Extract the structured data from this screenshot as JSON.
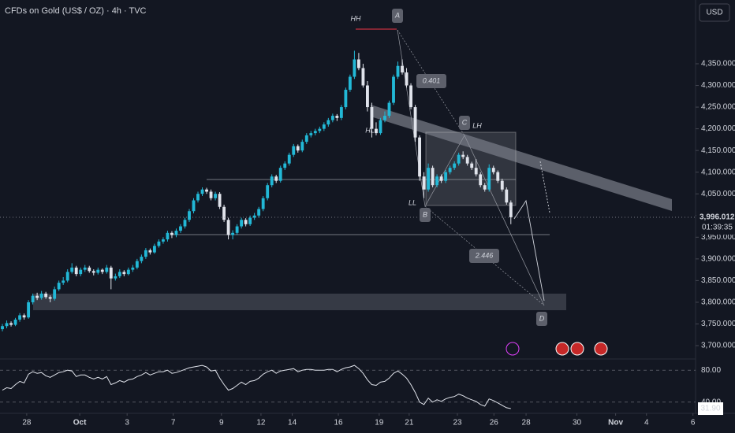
{
  "chart_data": {
    "type": "candlestick",
    "title": "CFDs on Gold (US$ / OZ) · 4h · TVC",
    "currency": "USD",
    "up_color": "#22b8d6",
    "down_color": "#e0e3eb",
    "ylim": [
      3671,
      4497
    ],
    "yticks": [
      {
        "value": 3700,
        "label": "3,700.000"
      },
      {
        "value": 3750,
        "label": "3,750.000"
      },
      {
        "value": 3800,
        "label": "3,800.000"
      },
      {
        "value": 3850,
        "label": "3,850.000"
      },
      {
        "value": 3900,
        "label": "3,900.000"
      },
      {
        "value": 3950,
        "label": "3,950.000"
      },
      {
        "value": 4000,
        "label": "4,000.000"
      },
      {
        "value": 4050,
        "label": "4,050.000"
      },
      {
        "value": 4100,
        "label": "4,100.000"
      },
      {
        "value": 4150,
        "label": "4,150.000"
      },
      {
        "value": 4200,
        "label": "4,200.000"
      },
      {
        "value": 4250,
        "label": "4,250.000"
      },
      {
        "value": 4300,
        "label": "4,300.000"
      },
      {
        "value": 4350,
        "label": "4,350.000"
      }
    ],
    "xlim": [
      -0.55,
      159.5
    ],
    "xticks": [
      {
        "value": 5.6,
        "label": "28"
      },
      {
        "value": 17.8,
        "label": "Oct"
      },
      {
        "value": 28.7,
        "label": "3"
      },
      {
        "value": 39.3,
        "label": "7"
      },
      {
        "value": 50.4,
        "label": "9"
      },
      {
        "value": 59.5,
        "label": "12"
      },
      {
        "value": 66.7,
        "label": "14"
      },
      {
        "value": 77.3,
        "label": "16"
      },
      {
        "value": 86.7,
        "label": "19"
      },
      {
        "value": 93.6,
        "label": "21"
      },
      {
        "value": 104.7,
        "label": "23"
      },
      {
        "value": 113.1,
        "label": "26"
      },
      {
        "value": 120.5,
        "label": "28"
      },
      {
        "value": 132.2,
        "label": "30"
      },
      {
        "value": 141.1,
        "label": "Nov"
      },
      {
        "value": 148.2,
        "label": "4"
      },
      {
        "value": 158.9,
        "label": "6"
      }
    ],
    "last_price": {
      "value": 3996.012,
      "label": "3,996.012"
    },
    "countdown": "01:39:35",
    "candles": [
      [
        3738,
        3750,
        3733,
        3745
      ],
      [
        3745,
        3758,
        3740,
        3752
      ],
      [
        3752,
        3756,
        3744,
        3748
      ],
      [
        3748,
        3764,
        3745,
        3760
      ],
      [
        3760,
        3775,
        3755,
        3770
      ],
      [
        3770,
        3774,
        3760,
        3765
      ],
      [
        3765,
        3805,
        3762,
        3800
      ],
      [
        3800,
        3820,
        3795,
        3815
      ],
      [
        3815,
        3822,
        3805,
        3810
      ],
      [
        3810,
        3826,
        3806,
        3820
      ],
      [
        3820,
        3824,
        3808,
        3812
      ],
      [
        3812,
        3816,
        3800,
        3808
      ],
      [
        3808,
        3836,
        3804,
        3830
      ],
      [
        3830,
        3850,
        3826,
        3845
      ],
      [
        3845,
        3858,
        3840,
        3850
      ],
      [
        3850,
        3876,
        3846,
        3870
      ],
      [
        3870,
        3890,
        3866,
        3880
      ],
      [
        3880,
        3884,
        3860,
        3865
      ],
      [
        3865,
        3880,
        3860,
        3875
      ],
      [
        3875,
        3886,
        3870,
        3880
      ],
      [
        3880,
        3884,
        3868,
        3872
      ],
      [
        3872,
        3876,
        3862,
        3868
      ],
      [
        3868,
        3880,
        3864,
        3875
      ],
      [
        3875,
        3878,
        3865,
        3870
      ],
      [
        3870,
        3886,
        3866,
        3880
      ],
      [
        3880,
        3884,
        3830,
        3855
      ],
      [
        3855,
        3866,
        3850,
        3860
      ],
      [
        3860,
        3876,
        3856,
        3870
      ],
      [
        3870,
        3874,
        3860,
        3865
      ],
      [
        3865,
        3880,
        3862,
        3875
      ],
      [
        3875,
        3886,
        3870,
        3880
      ],
      [
        3880,
        3900,
        3876,
        3895
      ],
      [
        3895,
        3910,
        3890,
        3905
      ],
      [
        3905,
        3925,
        3900,
        3920
      ],
      [
        3920,
        3924,
        3910,
        3915
      ],
      [
        3915,
        3935,
        3912,
        3930
      ],
      [
        3930,
        3945,
        3926,
        3940
      ],
      [
        3940,
        3950,
        3935,
        3945
      ],
      [
        3945,
        3965,
        3940,
        3960
      ],
      [
        3960,
        3964,
        3948,
        3955
      ],
      [
        3955,
        3970,
        3950,
        3965
      ],
      [
        3965,
        3980,
        3960,
        3975
      ],
      [
        3975,
        3995,
        3970,
        3990
      ],
      [
        3990,
        4015,
        3985,
        4010
      ],
      [
        4010,
        4040,
        4005,
        4035
      ],
      [
        4035,
        4055,
        4030,
        4050
      ],
      [
        4050,
        4065,
        4045,
        4060
      ],
      [
        4060,
        4064,
        4050,
        4055
      ],
      [
        4055,
        4060,
        4035,
        4040
      ],
      [
        4040,
        4055,
        4035,
        4050
      ],
      [
        4050,
        4054,
        4015,
        4020
      ],
      [
        4020,
        4025,
        3985,
        3990
      ],
      [
        3990,
        3995,
        3945,
        3955
      ],
      [
        3955,
        3966,
        3945,
        3960
      ],
      [
        3960,
        3980,
        3955,
        3975
      ],
      [
        3975,
        3995,
        3970,
        3990
      ],
      [
        3990,
        3994,
        3975,
        3980
      ],
      [
        3980,
        4000,
        3976,
        3995
      ],
      [
        3995,
        4006,
        3990,
        4000
      ],
      [
        4000,
        4020,
        3995,
        4015
      ],
      [
        4015,
        4045,
        4010,
        4040
      ],
      [
        4040,
        4075,
        4035,
        4070
      ],
      [
        4070,
        4095,
        4065,
        4090
      ],
      [
        4090,
        4094,
        4075,
        4080
      ],
      [
        4080,
        4115,
        4076,
        4110
      ],
      [
        4110,
        4125,
        4105,
        4120
      ],
      [
        4120,
        4145,
        4115,
        4140
      ],
      [
        4140,
        4165,
        4135,
        4160
      ],
      [
        4160,
        4164,
        4145,
        4150
      ],
      [
        4150,
        4175,
        4146,
        4170
      ],
      [
        4170,
        4190,
        4165,
        4185
      ],
      [
        4185,
        4195,
        4180,
        4190
      ],
      [
        4190,
        4200,
        4185,
        4195
      ],
      [
        4195,
        4205,
        4190,
        4200
      ],
      [
        4200,
        4215,
        4195,
        4210
      ],
      [
        4210,
        4225,
        4205,
        4220
      ],
      [
        4220,
        4235,
        4215,
        4230
      ],
      [
        4230,
        4234,
        4218,
        4225
      ],
      [
        4225,
        4255,
        4220,
        4250
      ],
      [
        4250,
        4295,
        4245,
        4290
      ],
      [
        4290,
        4325,
        4285,
        4320
      ],
      [
        4320,
        4380,
        4315,
        4360
      ],
      [
        4360,
        4375,
        4335,
        4340
      ],
      [
        4340,
        4350,
        4295,
        4300
      ],
      [
        4300,
        4310,
        4240,
        4250
      ],
      [
        4250,
        4260,
        4180,
        4200
      ],
      [
        4200,
        4215,
        4185,
        4190
      ],
      [
        4190,
        4225,
        4186,
        4220
      ],
      [
        4220,
        4240,
        4215,
        4230
      ],
      [
        4230,
        4265,
        4225,
        4260
      ],
      [
        4260,
        4325,
        4255,
        4320
      ],
      [
        4320,
        4355,
        4315,
        4345
      ],
      [
        4345,
        4360,
        4325,
        4330
      ],
      [
        4330,
        4340,
        4295,
        4300
      ],
      [
        4300,
        4305,
        4245,
        4250
      ],
      [
        4250,
        4255,
        4170,
        4180
      ],
      [
        4180,
        4185,
        4080,
        4090
      ],
      [
        4090,
        4100,
        4040,
        4060
      ],
      [
        4060,
        4120,
        4055,
        4110
      ],
      [
        4110,
        4115,
        4065,
        4070
      ],
      [
        4070,
        4095,
        4065,
        4090
      ],
      [
        4090,
        4095,
        4075,
        4080
      ],
      [
        4080,
        4105,
        4075,
        4100
      ],
      [
        4100,
        4115,
        4095,
        4110
      ],
      [
        4110,
        4125,
        4105,
        4120
      ],
      [
        4120,
        4145,
        4115,
        4140
      ],
      [
        4140,
        4148,
        4130,
        4135
      ],
      [
        4135,
        4140,
        4115,
        4120
      ],
      [
        4120,
        4124,
        4105,
        4110
      ],
      [
        4110,
        4130,
        4090,
        4095
      ],
      [
        4095,
        4100,
        4065,
        4070
      ],
      [
        4070,
        4075,
        4055,
        4060
      ],
      [
        4060,
        4118,
        4055,
        4110
      ],
      [
        4110,
        4115,
        4095,
        4100
      ],
      [
        4100,
        4104,
        4075,
        4080
      ],
      [
        4080,
        4085,
        4055,
        4060
      ],
      [
        4060,
        4065,
        4025,
        4030
      ],
      [
        4030,
        4035,
        3980,
        3996
      ]
    ],
    "annotations": [
      "HH",
      "A",
      "HL",
      "0.401",
      "C",
      "LH",
      "LL",
      "B",
      "2.446",
      "D"
    ],
    "rsi": {
      "ylim": [
        27,
        92
      ],
      "yticks": [
        {
          "value": 80,
          "label": "80.00"
        },
        {
          "value": 40,
          "label": "40.00"
        }
      ],
      "last": {
        "value": 31.9,
        "label": "31.90"
      },
      "values": [
        55,
        58,
        57,
        62,
        66,
        64,
        75,
        78,
        76,
        77,
        73,
        71,
        74,
        77,
        78,
        80,
        79,
        72,
        74,
        74,
        71,
        69,
        71,
        69,
        72,
        62,
        64,
        67,
        65,
        68,
        69,
        72,
        74,
        77,
        74,
        76,
        78,
        78,
        80,
        76,
        77,
        79,
        81,
        83,
        84,
        85,
        86,
        84,
        79,
        80,
        70,
        62,
        55,
        57,
        61,
        65,
        62,
        66,
        67,
        70,
        75,
        78,
        80,
        76,
        79,
        80,
        81,
        82,
        78,
        80,
        81,
        81,
        80,
        80,
        80,
        81,
        81,
        78,
        81,
        83,
        84,
        86,
        82,
        76,
        68,
        62,
        61,
        65,
        66,
        70,
        76,
        79,
        75,
        70,
        62,
        52,
        40,
        37,
        45,
        40,
        43,
        41,
        44,
        46,
        47,
        50,
        48,
        45,
        43,
        41,
        37,
        35,
        44,
        42,
        39,
        36,
        33,
        31.9
      ]
    }
  }
}
